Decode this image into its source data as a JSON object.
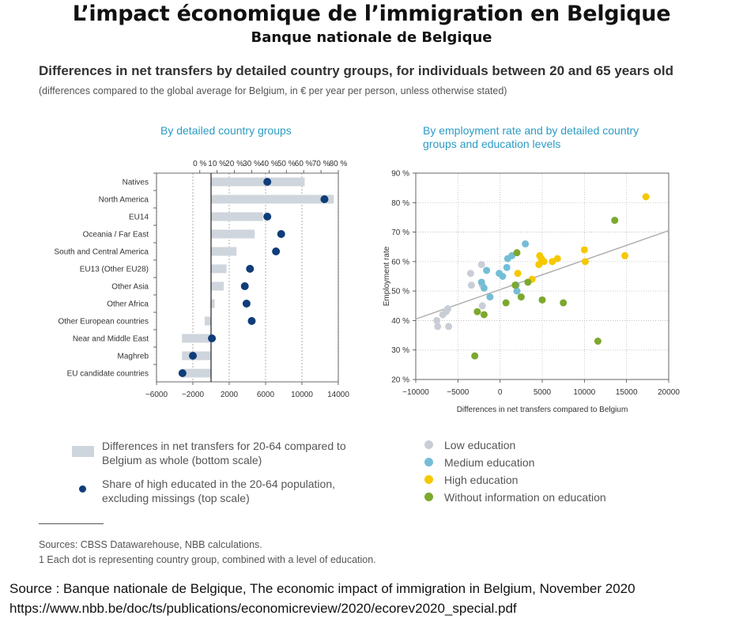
{
  "header": {
    "title": "L’impact économique de l’immigration en Belgique",
    "subtitle": "Banque nationale de Belgique"
  },
  "figure": {
    "title": "Differences in net transfers by detailed country groups, for individuals between 20 and 65 years old",
    "note": "(differences compared to the global average for Belgium, in € per year per person, unless otherwise stated)",
    "sources": "Sources: CBSS Datawarehouse, NBB calculations.",
    "footnote": "1  Each dot is representing country group, combined with a level of education."
  },
  "credit": {
    "line1": "Source : Banque nationale de Belgique, The economic impact of immigration in Belgium, November 2020",
    "line2": "https://www.nbb.be/doc/ts/publications/economicreview/2020/ecorev2020_special.pdf"
  },
  "colors": {
    "bar": "#cfd5dc",
    "navy_dot": "#0f3d7a",
    "low_edu": "#c9ced6",
    "medium_edu": "#74bdd6",
    "high_edu": "#f5c800",
    "no_info": "#7da82e",
    "trend": "#b0b0b0",
    "panel_title": "#2b9bc4"
  },
  "chart_data": [
    {
      "type": "bar",
      "title": "By detailed country groups",
      "orientation": "horizontal",
      "categories": [
        "Natives",
        "North America",
        "EU14",
        "Oceania / Far East",
        "South and Central America",
        "EU13 (Other EU28)",
        "Other Asia",
        "Other Africa",
        "Other European countries",
        "Near and Middle East",
        "Maghreb",
        "EU candidate countries"
      ],
      "series": [
        {
          "name": "Differences in net transfers for 20-64 compared to Belgium as whole (bottom scale)",
          "axis": "bottom",
          "values": [
            10300,
            13500,
            5700,
            4800,
            2800,
            1700,
            1400,
            400,
            -700,
            -3200,
            -3200,
            -3200
          ]
        },
        {
          "name": "Share of high educated in the 20-64 population, excluding missings (top scale)",
          "axis": "top",
          "values": [
            39,
            72,
            39,
            47,
            44,
            29,
            26,
            27,
            30,
            7,
            -4,
            -10
          ]
        }
      ],
      "bottom_axis": {
        "ticks": [
          "−6000",
          "−2000",
          "2000",
          "6000",
          "10000",
          "14000"
        ],
        "tick_values": [
          -6000,
          -2000,
          2000,
          6000,
          10000,
          14000
        ],
        "range": [
          -6000,
          14000
        ]
      },
      "top_axis": {
        "ticks": [
          "0 %",
          "10 %",
          "20 %",
          "30 %",
          "40 %",
          "50 %",
          "60 %",
          "70 %",
          "80 %"
        ],
        "tick_values": [
          0,
          10,
          20,
          30,
          40,
          50,
          60,
          70,
          80
        ],
        "range": [
          -25,
          80
        ]
      },
      "grid": "vertical dashed",
      "legend": [
        "Differences in net transfers for 20-64 compared to Belgium as whole (bottom scale)",
        "Share of high educated in the 20-64 population, excluding missings (top scale)"
      ]
    },
    {
      "type": "scatter",
      "title": "By employment rate and by detailed country groups and education levels",
      "xlabel": "Differences in net transfers compared to Belgium",
      "ylabel": "Employment rate",
      "xlim": [
        -10000,
        20000
      ],
      "ylim": [
        20,
        90
      ],
      "x_ticks": [
        "−10000",
        "−5000",
        "0",
        "5000",
        "10000",
        "15000",
        "20000"
      ],
      "x_tick_values": [
        -10000,
        -5000,
        0,
        5000,
        10000,
        15000,
        20000
      ],
      "y_ticks": [
        "20 %",
        "30 %",
        "40 %",
        "50 %",
        "60 %",
        "70 %",
        "80 %",
        "90 %"
      ],
      "y_tick_values": [
        20,
        30,
        40,
        50,
        60,
        70,
        80,
        90
      ],
      "grid": "horizontal and vertical dotted",
      "trendline": {
        "x": [
          -10000,
          20000
        ],
        "y": [
          40.5,
          70.5
        ]
      },
      "series": [
        {
          "name": "Low education",
          "points": [
            [
              -7500,
              40
            ],
            [
              -7400,
              38
            ],
            [
              -6800,
              42
            ],
            [
              -6400,
              43
            ],
            [
              -6200,
              44
            ],
            [
              -6100,
              38
            ],
            [
              -3500,
              56
            ],
            [
              -3400,
              52
            ],
            [
              -2200,
              59
            ],
            [
              -2100,
              52
            ],
            [
              -2100,
              45
            ]
          ]
        },
        {
          "name": "Medium education",
          "points": [
            [
              -2200,
              53
            ],
            [
              -1900,
              51
            ],
            [
              -1600,
              57
            ],
            [
              -1200,
              48
            ],
            [
              -100,
              56
            ],
            [
              300,
              55
            ],
            [
              800,
              58
            ],
            [
              900,
              61
            ],
            [
              1400,
              62
            ],
            [
              1900,
              52
            ],
            [
              2000,
              50
            ],
            [
              3000,
              66
            ]
          ]
        },
        {
          "name": "High education",
          "points": [
            [
              2100,
              56
            ],
            [
              3800,
              54
            ],
            [
              4600,
              59
            ],
            [
              4700,
              62
            ],
            [
              4900,
              61
            ],
            [
              5200,
              60
            ],
            [
              6200,
              60
            ],
            [
              6800,
              61
            ],
            [
              10000,
              64
            ],
            [
              10100,
              60
            ],
            [
              14800,
              62
            ],
            [
              17300,
              82
            ]
          ]
        },
        {
          "name": "Without information on education",
          "points": [
            [
              -3000,
              28
            ],
            [
              -2700,
              43
            ],
            [
              -1900,
              42
            ],
            [
              700,
              46
            ],
            [
              1800,
              52
            ],
            [
              2000,
              63
            ],
            [
              2500,
              48
            ],
            [
              3300,
              53
            ],
            [
              5000,
              47
            ],
            [
              7500,
              46
            ],
            [
              11600,
              33
            ],
            [
              13600,
              74
            ]
          ]
        }
      ],
      "legend": [
        "Low education",
        "Medium education",
        "High education",
        "Without information on education"
      ]
    }
  ]
}
